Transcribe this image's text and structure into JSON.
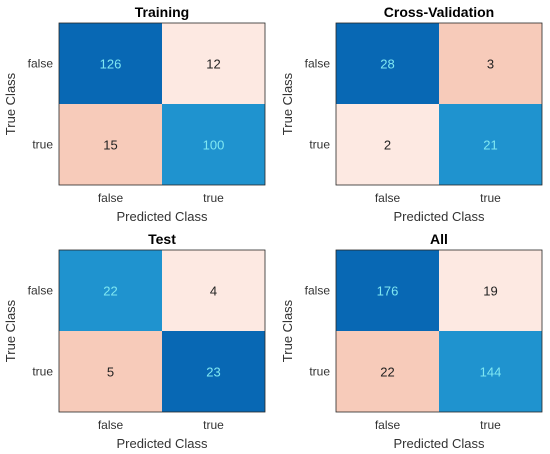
{
  "chart_data": [
    {
      "type": "heatmap",
      "title": "Training",
      "xlabel": "Predicted Class",
      "ylabel": "True Class",
      "x_categories": [
        "false",
        "true"
      ],
      "y_categories": [
        "false",
        "true"
      ],
      "matrix": [
        [
          126,
          12
        ],
        [
          15,
          100
        ]
      ]
    },
    {
      "type": "heatmap",
      "title": "Cross-Validation",
      "xlabel": "Predicted Class",
      "ylabel": "True Class",
      "x_categories": [
        "false",
        "true"
      ],
      "y_categories": [
        "false",
        "true"
      ],
      "matrix": [
        [
          28,
          3
        ],
        [
          2,
          21
        ]
      ]
    },
    {
      "type": "heatmap",
      "title": "Test",
      "xlabel": "Predicted Class",
      "ylabel": "True Class",
      "x_categories": [
        "false",
        "true"
      ],
      "y_categories": [
        "false",
        "true"
      ],
      "matrix": [
        [
          22,
          4
        ],
        [
          5,
          23
        ]
      ]
    },
    {
      "type": "heatmap",
      "title": "All",
      "xlabel": "Predicted Class",
      "ylabel": "True Class",
      "x_categories": [
        "false",
        "true"
      ],
      "y_categories": [
        "false",
        "true"
      ],
      "matrix": [
        [
          176,
          19
        ],
        [
          22,
          144
        ]
      ]
    }
  ],
  "colors": {
    "correct_dark": "#0868b4",
    "correct_mid": "#1f93cf",
    "error_light": "#fde9e2",
    "error_mid": "#f7cbba",
    "correct_text": "#7fe7f2",
    "error_text": "#222222"
  }
}
